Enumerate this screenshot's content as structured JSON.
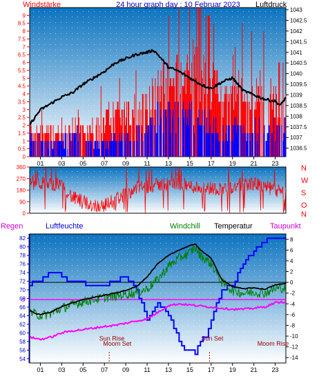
{
  "header": {
    "left": "Windstärke",
    "center": "24 hour graph day : 10 Februar 2023",
    "right": "Luftdruck"
  },
  "colors": {
    "wind_gust": "#ff0000",
    "wind_avg": "#0000ff",
    "pressure": "#000000",
    "direction": "#ff0000",
    "temperature": "#000000",
    "windchill": "#008000",
    "humidity": "#0000ff",
    "dewpoint": "#ff00ff",
    "rain_zero_line": "#ff00ff",
    "label_red": "#ff0000",
    "label_blue": "#0000ff",
    "axis_blue": "#0000cc",
    "sky_top": "#0c73bf",
    "sky_bottom": "#ffffff"
  },
  "time_axis": {
    "ticks": [
      "01",
      "03",
      "05",
      "07",
      "09",
      "11",
      "13",
      "15",
      "17",
      "19",
      "21",
      "23"
    ],
    "hours": [
      1,
      3,
      5,
      7,
      9,
      11,
      13,
      15,
      17,
      19,
      21,
      23
    ],
    "range": [
      0,
      24
    ]
  },
  "chart_data": [
    {
      "type": "line",
      "panel": "wind_pressure",
      "y_left": {
        "label": "Windstärke",
        "range": [
          0,
          9.5
        ],
        "ticks": [
          "0",
          "0.5",
          "1",
          "1.5",
          "2",
          "2.5",
          "3",
          "3.5",
          "4",
          "4.5",
          "5",
          "5.5",
          "6",
          "6.5",
          "7",
          "7.5",
          "8",
          "8.5",
          "9"
        ],
        "tick_values": [
          0,
          0.5,
          1,
          1.5,
          2,
          2.5,
          3,
          3.5,
          4,
          4.5,
          5,
          5.5,
          6,
          6.5,
          7,
          7.5,
          8,
          8.5,
          9
        ]
      },
      "y_right": {
        "label": "Luftdruck",
        "range": [
          1036.1,
          1043.1
        ],
        "ticks": [
          "1036.5",
          "1037",
          "1037.5",
          "1038",
          "1038.5",
          "1039",
          "1039.5",
          "1040",
          "1040.5",
          "1041",
          "1041.5",
          "1042",
          "1042.5",
          "1043"
        ],
        "tick_values": [
          1036.5,
          1037,
          1037.5,
          1038,
          1038.5,
          1039,
          1039.5,
          1040,
          1040.5,
          1041,
          1041.5,
          1042,
          1042.5,
          1043
        ]
      },
      "pressure": {
        "x": [
          0,
          1,
          2,
          3,
          4,
          5,
          6,
          7,
          8,
          9,
          10,
          11,
          11.6,
          12,
          13,
          14,
          15,
          16,
          17,
          18,
          19,
          20,
          21,
          22,
          23,
          23.5,
          24
        ],
        "y": [
          1037.6,
          1038.3,
          1038.6,
          1038.9,
          1039.1,
          1039.5,
          1039.8,
          1040.1,
          1040.5,
          1040.7,
          1040.9,
          1041.0,
          1041.1,
          1040.9,
          1040.3,
          1040.1,
          1039.8,
          1039.5,
          1039.3,
          1039.6,
          1039.8,
          1039.2,
          1039.0,
          1038.8,
          1038.7,
          1038.5,
          1038.9
        ]
      },
      "wind_gust_levels": {
        "x": [
          0,
          1,
          2,
          3,
          4,
          5,
          6,
          7,
          8,
          9,
          10,
          11,
          12,
          13,
          14,
          15,
          16,
          17,
          18,
          19,
          20,
          21,
          22,
          23,
          24
        ],
        "y": [
          2,
          2,
          2,
          2,
          2,
          2,
          2,
          3,
          3,
          3,
          3.5,
          4,
          5,
          5.5,
          6,
          7,
          6,
          5.5,
          4.5,
          4,
          5.5,
          5,
          5,
          4,
          3.5
        ]
      },
      "wind_avg_levels": {
        "x": [
          0,
          1,
          2,
          3,
          4,
          5,
          6,
          7,
          8,
          9,
          10,
          11,
          12,
          13,
          14,
          15,
          16,
          17,
          18,
          19,
          20,
          21,
          22,
          23,
          24
        ],
        "y": [
          1.5,
          1.2,
          1,
          1,
          1.5,
          1.5,
          1,
          1,
          1.5,
          1.5,
          2,
          2,
          3,
          3,
          3,
          3,
          3,
          2.5,
          2,
          2,
          2,
          2,
          2,
          2,
          2
        ]
      }
    },
    {
      "type": "line",
      "panel": "wind_direction",
      "y_left": {
        "range": [
          0,
          360
        ],
        "ticks": [
          "0",
          "90",
          "180",
          "270",
          "360"
        ],
        "tick_values": [
          0,
          90,
          180,
          270,
          360
        ]
      },
      "compass_labels": [
        "N",
        "W",
        "S",
        "O",
        "N"
      ],
      "direction": {
        "x": [
          0,
          1,
          2,
          3,
          4,
          5,
          6,
          7,
          8,
          9,
          10,
          11,
          12,
          13,
          14,
          15,
          16,
          17,
          18,
          19,
          20,
          21,
          22,
          23,
          24
        ],
        "y": [
          240,
          235,
          225,
          230,
          120,
          90,
          60,
          60,
          110,
          150,
          200,
          210,
          220,
          230,
          230,
          210,
          200,
          195,
          190,
          200,
          230,
          230,
          210,
          180,
          150
        ]
      }
    },
    {
      "type": "line",
      "panel": "temperature_humidity",
      "header": {
        "regen": "Regen",
        "luftfeuchte": "Luftfeuchte",
        "windchill": "Windchill",
        "temperatur": "Temperatur",
        "taupunkt": "Taupunkt"
      },
      "y_left": {
        "label": "Luftfeuchte",
        "range": [
          53,
          83
        ],
        "ticks": [
          "54",
          "56",
          "58",
          "60",
          "62",
          "64",
          "66",
          "68",
          "70",
          "72",
          "74",
          "76",
          "78",
          "80",
          "82"
        ],
        "tick_values": [
          54,
          56,
          58,
          60,
          62,
          64,
          66,
          68,
          70,
          72,
          74,
          76,
          78,
          80,
          82
        ]
      },
      "y_right": {
        "label": "Temperatur",
        "range": [
          -15,
          9
        ],
        "ticks": [
          "8",
          "6",
          "4",
          "2",
          "0",
          "-2",
          "-4",
          "-6",
          "-8",
          "-10",
          "-12",
          "-14"
        ],
        "tick_values": [
          8,
          6,
          4,
          2,
          0,
          -2,
          -4,
          -6,
          -8,
          -10,
          -12,
          -14
        ]
      },
      "rain": {
        "label": "0",
        "value": 0
      },
      "temperature": {
        "x": [
          0,
          0.5,
          1,
          2,
          3,
          4,
          5,
          6,
          7,
          8,
          9,
          10,
          11,
          12,
          13,
          14,
          15,
          15.5,
          16,
          17,
          18,
          19,
          20,
          21,
          22,
          23,
          24
        ],
        "y": [
          -5.2,
          -5.8,
          -6.0,
          -5.5,
          -4.5,
          -3.8,
          -3.2,
          -2.8,
          -2.4,
          -2.0,
          -1.5,
          -0.8,
          1.0,
          3.5,
          5.0,
          6.0,
          6.8,
          7.2,
          6.0,
          4.5,
          0.5,
          -0.8,
          -1.2,
          -1.0,
          -1.3,
          -0.5,
          -0.2
        ]
      },
      "windchill": {
        "x": [
          0,
          1,
          2,
          3,
          4,
          5,
          6,
          7,
          8,
          9,
          10,
          11,
          12,
          13,
          14,
          15,
          15.5,
          16,
          17,
          18,
          19,
          20,
          21,
          22,
          23,
          24
        ],
        "y": [
          -5.5,
          -6.2,
          -5.8,
          -4.8,
          -4.2,
          -3.6,
          -3.2,
          -2.8,
          -2.6,
          -2.2,
          -2.0,
          -1.2,
          0.5,
          3.0,
          4.5,
          5.5,
          6.5,
          5.0,
          3.5,
          0.0,
          -1.5,
          -2.0,
          -1.8,
          -2.0,
          -1.2,
          -1.0
        ]
      },
      "humidity": {
        "x": [
          0,
          0.5,
          1,
          1.5,
          2,
          2.5,
          3,
          3.5,
          4,
          6,
          7,
          8,
          9,
          10,
          11,
          12,
          13,
          14,
          14.5,
          15,
          15.5,
          16,
          16.5,
          17,
          18,
          19,
          20,
          21,
          22,
          22.5,
          23,
          24
        ],
        "y": [
          71,
          72,
          72,
          73,
          74,
          74,
          73,
          72,
          72,
          71,
          71,
          72,
          73,
          70,
          63,
          67,
          64,
          58,
          56,
          56,
          55,
          58,
          59,
          63,
          70,
          71,
          76,
          79,
          81,
          82,
          82,
          82
        ]
      },
      "dewpoint": {
        "x": [
          0,
          1,
          2,
          3,
          4,
          5,
          6,
          7,
          8,
          9,
          10,
          11,
          12,
          13,
          14,
          15,
          16,
          17,
          18,
          19,
          20,
          21,
          22,
          23,
          24
        ],
        "y": [
          -10.2,
          -10.6,
          -10.2,
          -9.4,
          -9.0,
          -8.8,
          -8.5,
          -8.2,
          -8.0,
          -7.6,
          -7.2,
          -6.8,
          -5.6,
          -4.3,
          -4.0,
          -4.2,
          -4.4,
          -4.6,
          -4.8,
          -5.0,
          -5.0,
          -4.8,
          -4.6,
          -3.8,
          -3.6
        ]
      },
      "annotations": [
        {
          "text": "Sun Rise",
          "hour": 7.7,
          "value": 58.2
        },
        {
          "text": "Moom Set",
          "hour": 8.2,
          "value": 57.0
        },
        {
          "text": "Sun Set",
          "hour": 17.1,
          "value": 58.2
        },
        {
          "text": "Moom Rise",
          "hour": 22.8,
          "value": 57.0
        }
      ]
    }
  ]
}
